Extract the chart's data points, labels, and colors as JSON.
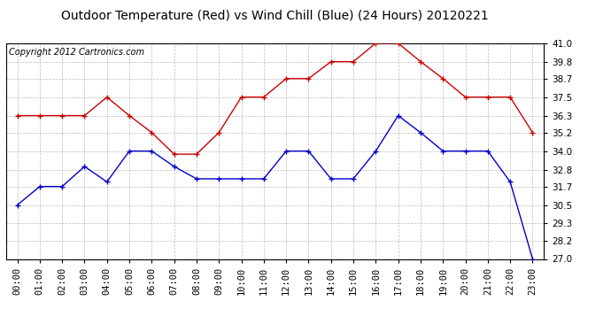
{
  "title": "Outdoor Temperature (Red) vs Wind Chill (Blue) (24 Hours) 20120221",
  "copyright": "Copyright 2012 Cartronics.com",
  "hours": [
    "00:00",
    "01:00",
    "02:00",
    "03:00",
    "04:00",
    "05:00",
    "06:00",
    "07:00",
    "08:00",
    "09:00",
    "10:00",
    "11:00",
    "12:00",
    "13:00",
    "14:00",
    "15:00",
    "16:00",
    "17:00",
    "18:00",
    "19:00",
    "20:00",
    "21:00",
    "22:00",
    "23:00"
  ],
  "temp_red": [
    36.3,
    36.3,
    36.3,
    36.3,
    37.5,
    36.3,
    35.2,
    33.8,
    33.8,
    35.2,
    37.5,
    37.5,
    38.7,
    38.7,
    39.8,
    39.8,
    41.0,
    41.0,
    39.8,
    38.7,
    37.5,
    37.5,
    37.5,
    35.2
  ],
  "wind_chill_blue": [
    30.5,
    31.7,
    31.7,
    33.0,
    32.0,
    34.0,
    34.0,
    33.0,
    32.2,
    32.2,
    32.2,
    32.2,
    34.0,
    34.0,
    32.2,
    32.2,
    34.0,
    36.3,
    35.2,
    34.0,
    34.0,
    34.0,
    32.0,
    27.0
  ],
  "ylim_min": 27.0,
  "ylim_max": 41.0,
  "yticks": [
    27.0,
    28.2,
    29.3,
    30.5,
    31.7,
    32.8,
    34.0,
    35.2,
    36.3,
    37.5,
    38.7,
    39.8,
    41.0
  ],
  "red_color": "#cc0000",
  "blue_color": "#0000cc",
  "bg_color": "#ffffff",
  "grid_color": "#bbbbbb",
  "title_fontsize": 10,
  "copyright_fontsize": 7,
  "tick_fontsize": 7.5,
  "figwidth": 6.9,
  "figheight": 3.75,
  "dpi": 100
}
